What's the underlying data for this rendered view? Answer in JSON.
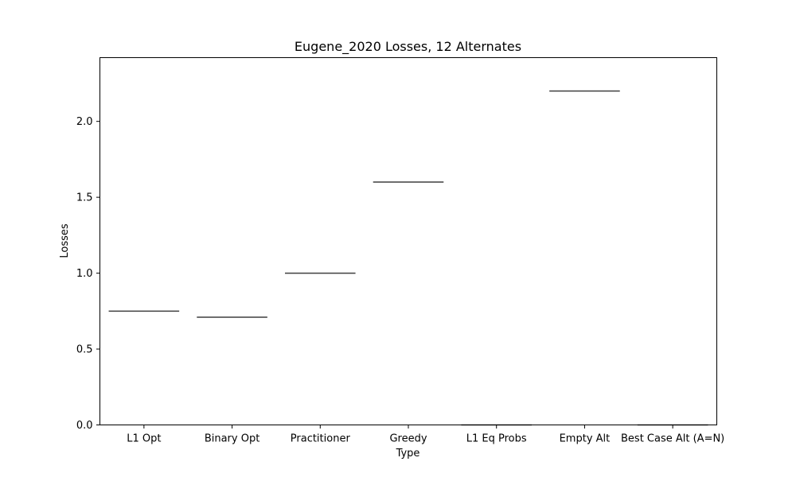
{
  "chart_data": {
    "type": "box",
    "title": "Eugene_2020 Losses, 12 Alternates",
    "xlabel": "Type",
    "ylabel": "Losses",
    "categories": [
      "L1 Opt",
      "Binary Opt",
      "Practitioner",
      "Greedy",
      "L1 Eq Probs",
      "Empty Alt",
      "Best Case Alt (A=N)"
    ],
    "values": [
      0.75,
      0.71,
      1.0,
      1.6,
      0.0,
      2.2,
      0.0
    ],
    "ylim": [
      0,
      2.42
    ],
    "yticks": [
      0.0,
      0.5,
      1.0,
      1.5,
      2.0
    ],
    "ytick_labels": [
      "0.0",
      "0.5",
      "1.0",
      "1.5",
      "2.0"
    ],
    "grid": false,
    "line_color": "#3f3f3f"
  }
}
